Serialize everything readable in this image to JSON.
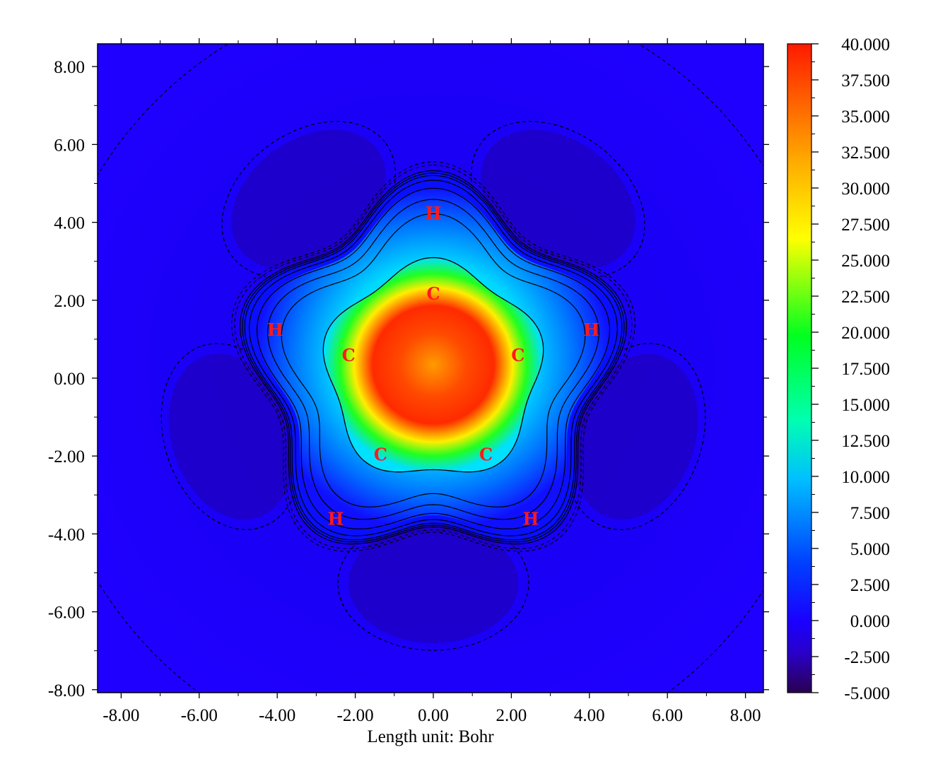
{
  "chart_data": {
    "type": "heatmap",
    "title": "",
    "xlabel": "Length unit: Bohr",
    "ylabel": "",
    "xlim": [
      -8.6,
      8.4
    ],
    "ylim": [
      -8.0,
      8.6
    ],
    "x_ticks": [
      "-8.00",
      "-6.00",
      "-4.00",
      "-2.00",
      "0.00",
      "2.00",
      "4.00",
      "6.00",
      "8.00"
    ],
    "y_ticks": [
      "8.00",
      "6.00",
      "4.00",
      "2.00",
      "0.00",
      "-2.00",
      "-4.00",
      "-6.00",
      "-8.00"
    ],
    "colorbar": {
      "range": [
        -5.0,
        40.0
      ],
      "ticks": [
        "40.000",
        "37.500",
        "35.000",
        "32.500",
        "30.000",
        "27.500",
        "25.000",
        "22.500",
        "20.000",
        "17.500",
        "15.000",
        "12.500",
        "10.000",
        "7.500",
        "5.000",
        "2.500",
        "0.000",
        "-2.500",
        "-5.000"
      ],
      "colors": [
        "#2a0050",
        "#1a00ff",
        "#0050ff",
        "#00e6ff",
        "#00ff28",
        "#ffff00",
        "#ff9900",
        "#ff1a00"
      ]
    },
    "atoms": [
      {
        "label": "C",
        "x": 0.0,
        "y": 2.18
      },
      {
        "label": "C",
        "x": -2.17,
        "y": 0.6
      },
      {
        "label": "C",
        "x": 2.17,
        "y": 0.6
      },
      {
        "label": "C",
        "x": -1.35,
        "y": -1.95
      },
      {
        "label": "C",
        "x": 1.35,
        "y": -1.95
      },
      {
        "label": "H",
        "x": 0.0,
        "y": 4.25
      },
      {
        "label": "H",
        "x": -4.05,
        "y": 1.25
      },
      {
        "label": "H",
        "x": 4.05,
        "y": 1.25
      },
      {
        "label": "H",
        "x": -2.5,
        "y": -3.6
      },
      {
        "label": "H",
        "x": 2.5,
        "y": -3.6
      }
    ],
    "grid": false,
    "contours": "solid positive, dashed negative"
  }
}
